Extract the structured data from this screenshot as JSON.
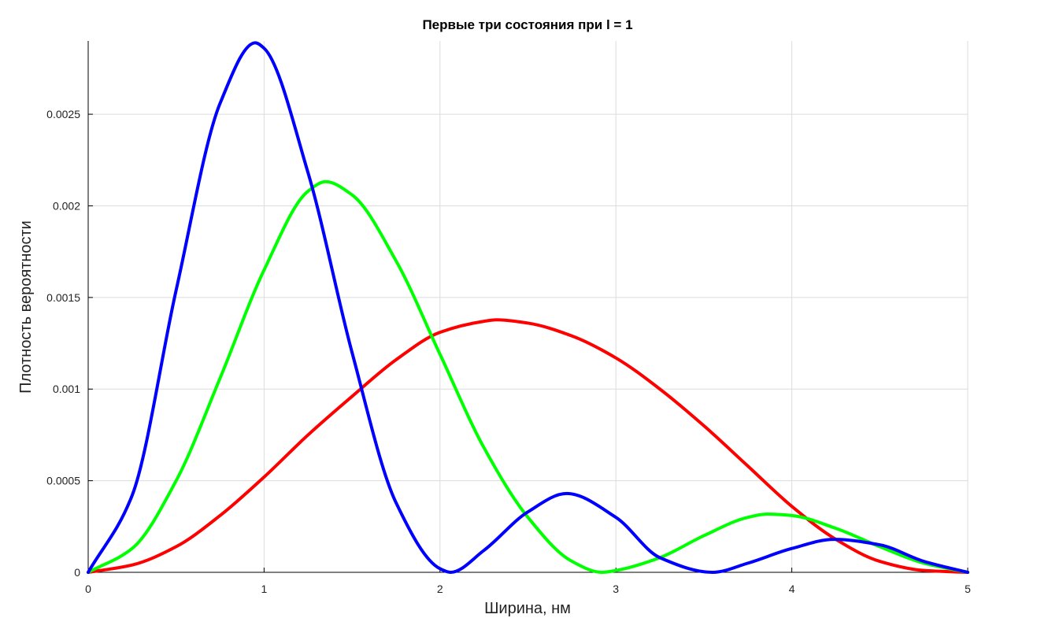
{
  "chart_data": {
    "type": "line",
    "title": "Первые три состояния при l = 1",
    "xlabel": "Ширина, нм",
    "ylabel": "Плотность вероятности",
    "xlim": [
      0,
      5
    ],
    "ylim": [
      0,
      0.0029
    ],
    "xticks": [
      0,
      1,
      2,
      3,
      4,
      5
    ],
    "xtick_labels": [
      "0",
      "1",
      "2",
      "3",
      "4",
      "5"
    ],
    "yticks": [
      0,
      0.0005,
      0.001,
      0.0015,
      0.002,
      0.0025
    ],
    "ytick_labels": [
      "0",
      "0.0005",
      "0.001",
      "0.0015",
      "0.002",
      "0.0025"
    ],
    "grid": true,
    "legend": "none",
    "series": [
      {
        "color": "#ff0000",
        "x": [
          0,
          0.25,
          0.5,
          0.75,
          1.0,
          1.25,
          1.5,
          1.75,
          2.0,
          2.25,
          2.32,
          2.5,
          2.75,
          3.0,
          3.25,
          3.5,
          3.75,
          4.0,
          4.25,
          4.5,
          4.75,
          5.0
        ],
        "y": [
          0,
          4e-05,
          0.00014,
          0.00031,
          0.00052,
          0.00075,
          0.00096,
          0.00116,
          0.00131,
          0.00137,
          0.001378,
          0.00136,
          0.00129,
          0.00117,
          0.001,
          0.0008,
          0.00058,
          0.00036,
          0.00018,
          6e-05,
          1e-05,
          0
        ]
      },
      {
        "color": "#00ff00",
        "x": [
          0,
          0.25,
          0.5,
          0.75,
          1.0,
          1.25,
          1.35,
          1.5,
          1.75,
          2.0,
          2.25,
          2.5,
          2.75,
          2.92,
          3.0,
          3.25,
          3.5,
          3.75,
          3.86,
          4.0,
          4.25,
          4.5,
          4.75,
          5.0
        ],
        "y": [
          0,
          0.00013,
          0.0005,
          0.00106,
          0.00165,
          0.00208,
          0.002132,
          0.00206,
          0.0017,
          0.00119,
          0.00068,
          0.0003,
          6e-05,
          0,
          1e-05,
          8e-05,
          0.0002,
          0.0003,
          0.000318,
          0.00031,
          0.00024,
          0.00014,
          5e-05,
          0
        ]
      },
      {
        "color": "#0000ff",
        "x": [
          0,
          0.25,
          0.5,
          0.75,
          0.95,
          1.0,
          1.25,
          1.5,
          1.75,
          2.0,
          2.06,
          2.25,
          2.5,
          2.72,
          3.0,
          3.25,
          3.55,
          3.75,
          4.0,
          4.24,
          4.5,
          4.75,
          5.0
        ],
        "y": [
          0,
          0.00042,
          0.00154,
          0.00256,
          0.00289,
          0.00286,
          0.00218,
          0.0012,
          0.00038,
          2e-05,
          0,
          0.00012,
          0.00033,
          0.00043,
          0.0003,
          8e-05,
          0,
          5e-05,
          0.00013,
          0.00018,
          0.00015,
          6e-05,
          0
        ]
      }
    ]
  }
}
